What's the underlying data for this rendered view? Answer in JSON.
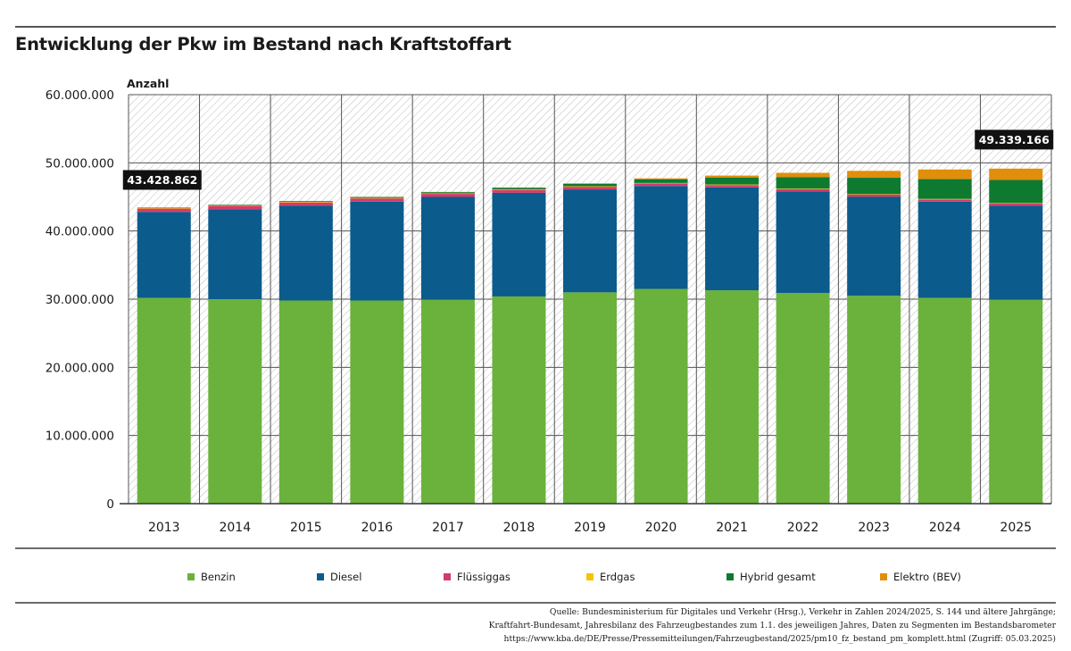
{
  "header": {
    "title": "Entwicklung der Pkw im Bestand nach Kraftstoffart"
  },
  "chart_data": {
    "type": "bar",
    "stacked": true,
    "title": "Entwicklung der Pkw im Bestand nach Kraftstoffart",
    "ylabel": "Anzahl",
    "xlabel": "",
    "ylim": [
      0,
      60000000
    ],
    "y_ticks": [
      0,
      10000000,
      20000000,
      30000000,
      40000000,
      50000000,
      60000000
    ],
    "y_tick_labels": [
      "0",
      "10.000.000",
      "20.000.000",
      "30.000.000",
      "40.000.000",
      "50.000.000",
      "60.000.000"
    ],
    "grid": true,
    "legend_position": "bottom",
    "categories": [
      "2013",
      "2014",
      "2015",
      "2016",
      "2017",
      "2018",
      "2019",
      "2020",
      "2021",
      "2022",
      "2023",
      "2024",
      "2025"
    ],
    "series": [
      {
        "name": "Benzin",
        "color": "#6ab23c",
        "values": [
          30200000,
          30000000,
          29800000,
          29800000,
          29900000,
          30400000,
          31000000,
          31500000,
          31300000,
          30900000,
          30500000,
          30200000,
          29900000
        ]
      },
      {
        "name": "Diesel",
        "color": "#0b5b8c",
        "values": [
          12600000,
          13200000,
          13900000,
          14500000,
          15100000,
          15200000,
          15100000,
          15100000,
          15100000,
          14900000,
          14500000,
          14100000,
          13800000
        ]
      },
      {
        "name": "Flüssiggas",
        "color": "#d23c6e",
        "values": [
          490000,
          500000,
          490000,
          480000,
          450000,
          420000,
          390000,
          370000,
          340000,
          330000,
          330000,
          330000,
          320000
        ]
      },
      {
        "name": "Erdgas",
        "color": "#f4c400",
        "values": [
          80000,
          80000,
          80000,
          80000,
          80000,
          80000,
          80000,
          80000,
          80000,
          80000,
          80000,
          80000,
          80000
        ]
      },
      {
        "name": "Hybrid gesamt",
        "color": "#0d7a30",
        "values": [
          60000,
          80000,
          110000,
          130000,
          170000,
          240000,
          340000,
          540000,
          1000000,
          1700000,
          2400000,
          2900000,
          3400000
        ]
      },
      {
        "name": "Elektro (BEV)",
        "color": "#e08e0b",
        "values": [
          7000,
          12000,
          19000,
          25000,
          34000,
          54000,
          84000,
          137000,
          310000,
          620000,
          1010000,
          1410000,
          1650000
        ]
      }
    ],
    "annotations": [
      {
        "category": "2013",
        "label": "43.428.862",
        "value": 43428862
      },
      {
        "category": "2025",
        "label": "49.339.166",
        "value": 49339166
      }
    ]
  },
  "source_lines": [
    "Quelle: Bundesministerium für Digitales und Verkehr (Hrsg.), Verkehr in Zahlen 2024/2025, S. 144 und ältere Jahrgänge;",
    "Kraftfahrt-Bundesamt, Jahresbilanz des Fahrzeugbestandes zum 1.1. des jeweiligen Jahres, Daten zu Segmenten im Bestandsbarometer",
    "https://www.kba.de/DE/Presse/Pressemitteilungen/Fahrzeugbestand/2025/pm10_fz_bestand_pm_komplett.html (Zugriff: 05.03.2025)"
  ]
}
